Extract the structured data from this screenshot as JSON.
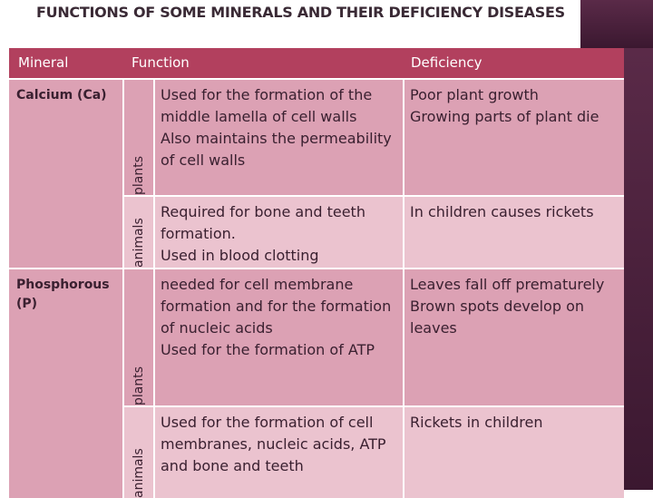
{
  "header": {
    "title": "FUNCTIONS OF SOME MINERALS AND THEIR DEFICIENCY DISEASES"
  },
  "table": {
    "columns": [
      "Mineral",
      "Function",
      "Deficiency"
    ],
    "rows": [
      {
        "mineral": "Calcium (Ca)",
        "entries": [
          {
            "organism": "plants",
            "function": [
              "Used for the formation of the middle lamella of cell walls",
              "Also maintains the permeability of cell walls"
            ],
            "deficiency": [
              "Poor plant growth",
              "Growing parts of plant die"
            ]
          },
          {
            "organism": "animals",
            "function": [
              "Required for bone and teeth formation.",
              "Used in blood clotting"
            ],
            "deficiency": [
              "In children causes rickets"
            ]
          }
        ]
      },
      {
        "mineral": "Phosphorous (P)",
        "entries": [
          {
            "organism": "plants",
            "function": [
              "needed for cell membrane formation and for the formation of nucleic acids",
              "Used for the formation of ATP"
            ],
            "deficiency": [
              "Leaves fall off prematurely",
              "Brown spots develop on leaves"
            ]
          },
          {
            "organism": "animals",
            "function": [
              "Used for the formation of cell membranes, nucleic acids, ATP and bone and teeth"
            ],
            "deficiency": [
              "Rickets in children"
            ]
          }
        ]
      }
    ]
  }
}
